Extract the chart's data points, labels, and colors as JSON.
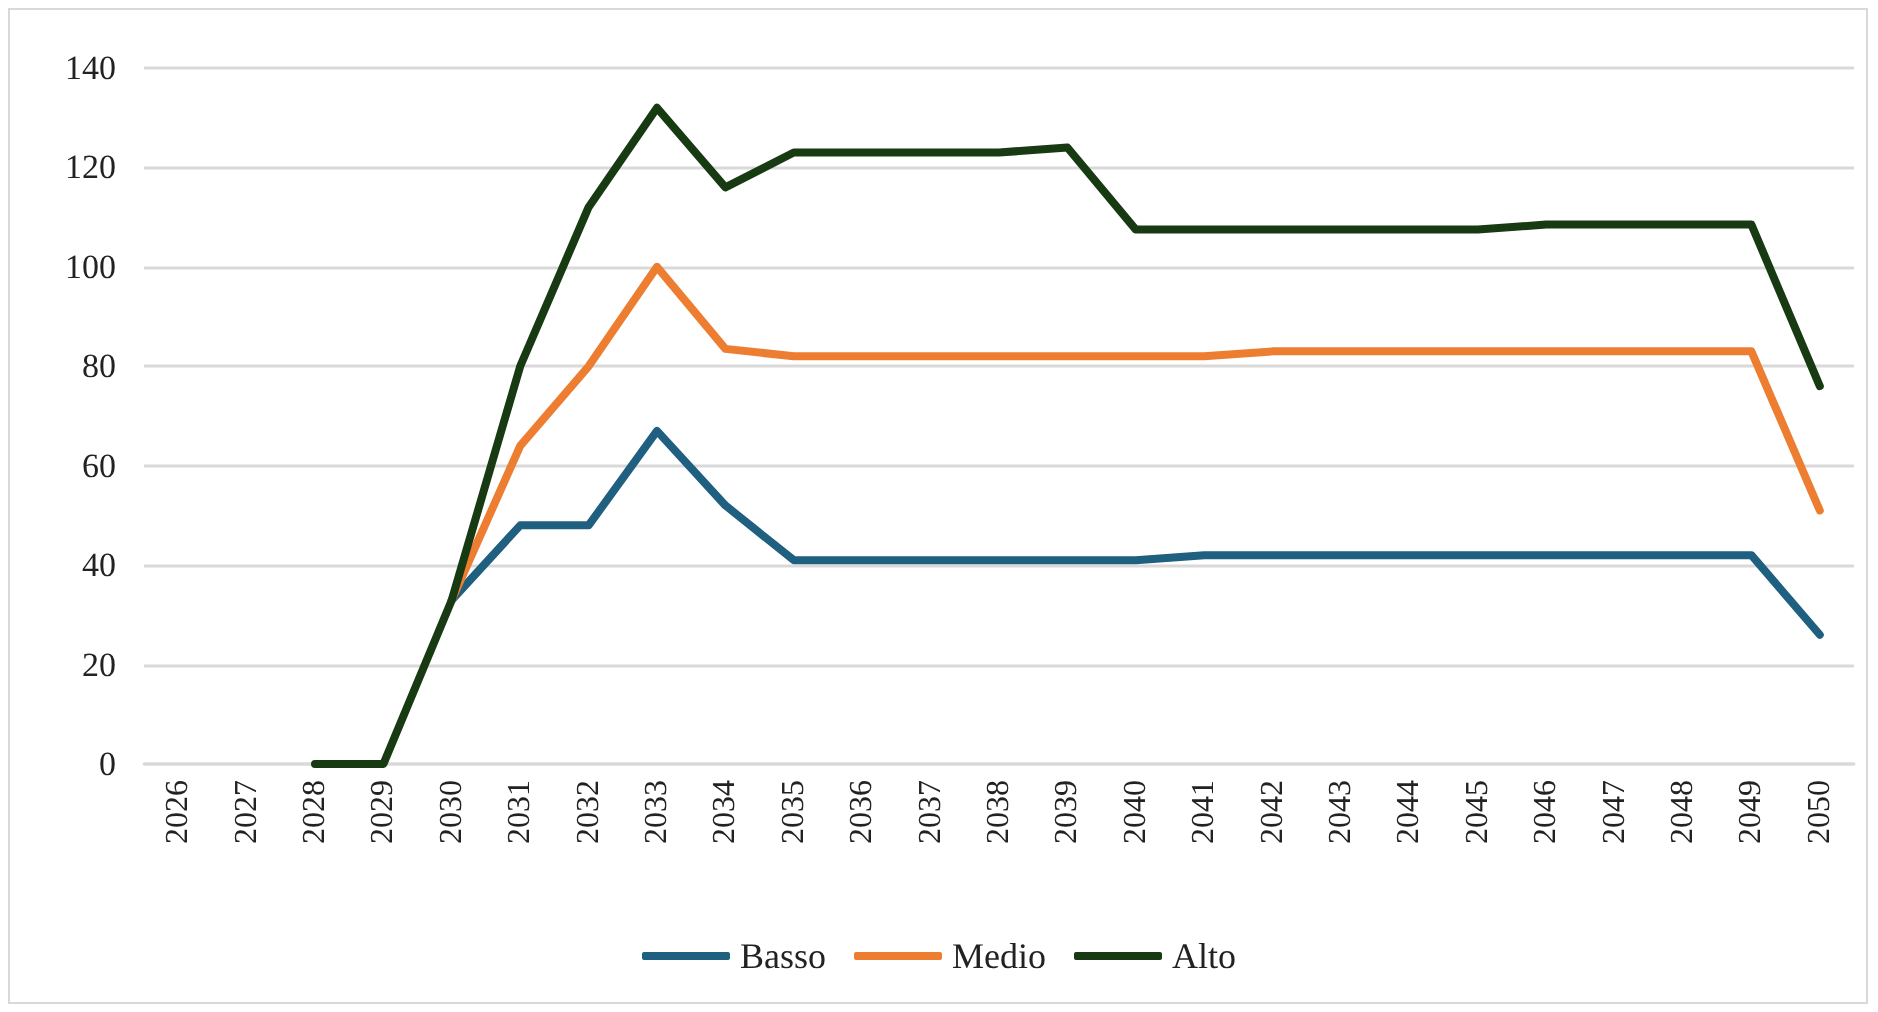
{
  "chart_data": {
    "type": "line",
    "categories": [
      "2026",
      "2027",
      "2028",
      "2029",
      "2030",
      "2031",
      "2032",
      "2033",
      "2034",
      "2035",
      "2036",
      "2037",
      "2038",
      "2039",
      "2040",
      "2041",
      "2042",
      "2043",
      "2044",
      "2045",
      "2046",
      "2047",
      "2048",
      "2049",
      "2050"
    ],
    "series": [
      {
        "name": "Basso",
        "color": "#1f5f7f",
        "values": [
          null,
          null,
          null,
          null,
          33,
          48,
          48,
          67,
          52,
          41,
          41,
          41,
          41,
          41,
          41,
          42,
          42,
          42,
          42,
          42,
          42,
          42,
          42,
          42,
          26
        ]
      },
      {
        "name": "Medio",
        "color": "#ed7d31",
        "values": [
          null,
          null,
          null,
          null,
          33,
          64,
          80,
          100,
          83.5,
          82,
          82,
          82,
          82,
          82,
          82,
          82,
          83,
          83,
          83,
          83,
          83,
          83,
          83,
          83,
          51
        ]
      },
      {
        "name": "Alto",
        "color": "#183a12",
        "values": [
          null,
          null,
          0,
          0,
          33,
          80,
          112,
          132,
          116,
          123,
          123,
          123,
          123,
          124,
          107.5,
          107.5,
          107.5,
          107.5,
          107.5,
          107.5,
          108.5,
          108.5,
          108.5,
          108.5,
          76
        ]
      }
    ],
    "ylim": [
      0,
      140
    ],
    "yticks": [
      0,
      20,
      40,
      60,
      80,
      100,
      120,
      140
    ],
    "grid": "y",
    "legend": "bottom",
    "marker": "none",
    "line_style": "solid"
  }
}
